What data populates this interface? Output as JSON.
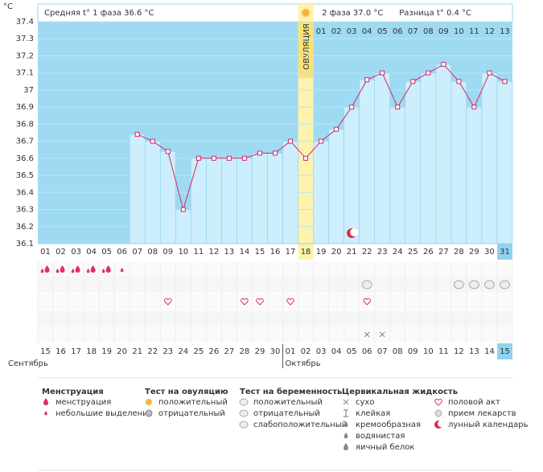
{
  "axis_unit": "°C",
  "phase1_text": "Средняя t° 1 фаза 36.6 °C",
  "ovulation_label": "ОВУЛЯЦИЯ",
  "ovulation_day": 18,
  "phase2_text": "2 фаза 37.0 °C",
  "difference_text": "Разница t° 0.4 °C",
  "chart_data": {
    "type": "line",
    "color": "#d4286a",
    "categories": [
      "01",
      "02",
      "03",
      "04",
      "05",
      "06",
      "07",
      "08",
      "09",
      "10",
      "11",
      "12",
      "13",
      "14",
      "15",
      "16",
      "17",
      "18",
      "19",
      "20",
      "21",
      "22",
      "23",
      "24",
      "25",
      "26",
      "27",
      "28",
      "29",
      "30",
      "31"
    ],
    "values": [
      null,
      null,
      null,
      null,
      null,
      null,
      36.74,
      36.7,
      36.64,
      36.3,
      36.6,
      36.6,
      36.6,
      36.6,
      36.63,
      36.63,
      36.7,
      36.6,
      36.7,
      36.77,
      36.9,
      37.06,
      37.1,
      36.9,
      37.05,
      37.1,
      37.15,
      37.05,
      36.9,
      37.1,
      37.05
    ],
    "ylim": [
      36.1,
      37.4
    ],
    "yticks": [
      36.1,
      36.2,
      36.3,
      36.4,
      36.5,
      36.6,
      36.7,
      36.8,
      36.9,
      37,
      37.1,
      37.2,
      37.3,
      37.4
    ],
    "grid": true,
    "luteal_days": [
      "01",
      "02",
      "03",
      "04",
      "05",
      "06",
      "07",
      "08",
      "09",
      "10",
      "11",
      "12",
      "13"
    ],
    "dates": [
      "15",
      "16",
      "17",
      "18",
      "19",
      "20",
      "21",
      "22",
      "23",
      "24",
      "25",
      "26",
      "27",
      "28",
      "29",
      "30",
      "01",
      "02",
      "03",
      "04",
      "05",
      "06",
      "07",
      "08",
      "09",
      "10",
      "11",
      "12",
      "13",
      "14",
      "15"
    ],
    "weekend": [
      true,
      false,
      false,
      false,
      false,
      false,
      true,
      true,
      false,
      false,
      false,
      false,
      false,
      true,
      true,
      false,
      false,
      false,
      false,
      false,
      true,
      true,
      false,
      false,
      false,
      false,
      false,
      true,
      true,
      false,
      false
    ],
    "months": [
      {
        "name": "Сентябрь",
        "start": 1
      },
      {
        "name": "Октябрь",
        "start": 17
      }
    ],
    "today": 31,
    "menstruation_days": [
      1,
      2,
      3,
      4,
      5
    ],
    "spotting_days": [
      6
    ],
    "pregnancy_negative_days": [
      22,
      28,
      29,
      30,
      31
    ],
    "intercourse_days": [
      9,
      14,
      15,
      17,
      22
    ],
    "dry_days": [
      22,
      23
    ],
    "moon_days": [
      21
    ]
  },
  "legend": [
    {
      "title": "Менструация",
      "items": [
        "менструация",
        "небольшие выделения"
      ]
    },
    {
      "title": "Тест на овуляцию",
      "items": [
        "положительный",
        "отрицательный"
      ]
    },
    {
      "title": "Тест на беременность",
      "items": [
        "положительный",
        "отрицательный",
        "слабоположительный"
      ]
    },
    {
      "title": "Цервикальная жидкость",
      "items": [
        "сухо",
        "клейкая",
        "кремообразная",
        "водянистая",
        "яичный белок"
      ]
    },
    {
      "items": [
        "половой акт",
        "прием лекарств",
        "лунный календарь"
      ]
    }
  ]
}
